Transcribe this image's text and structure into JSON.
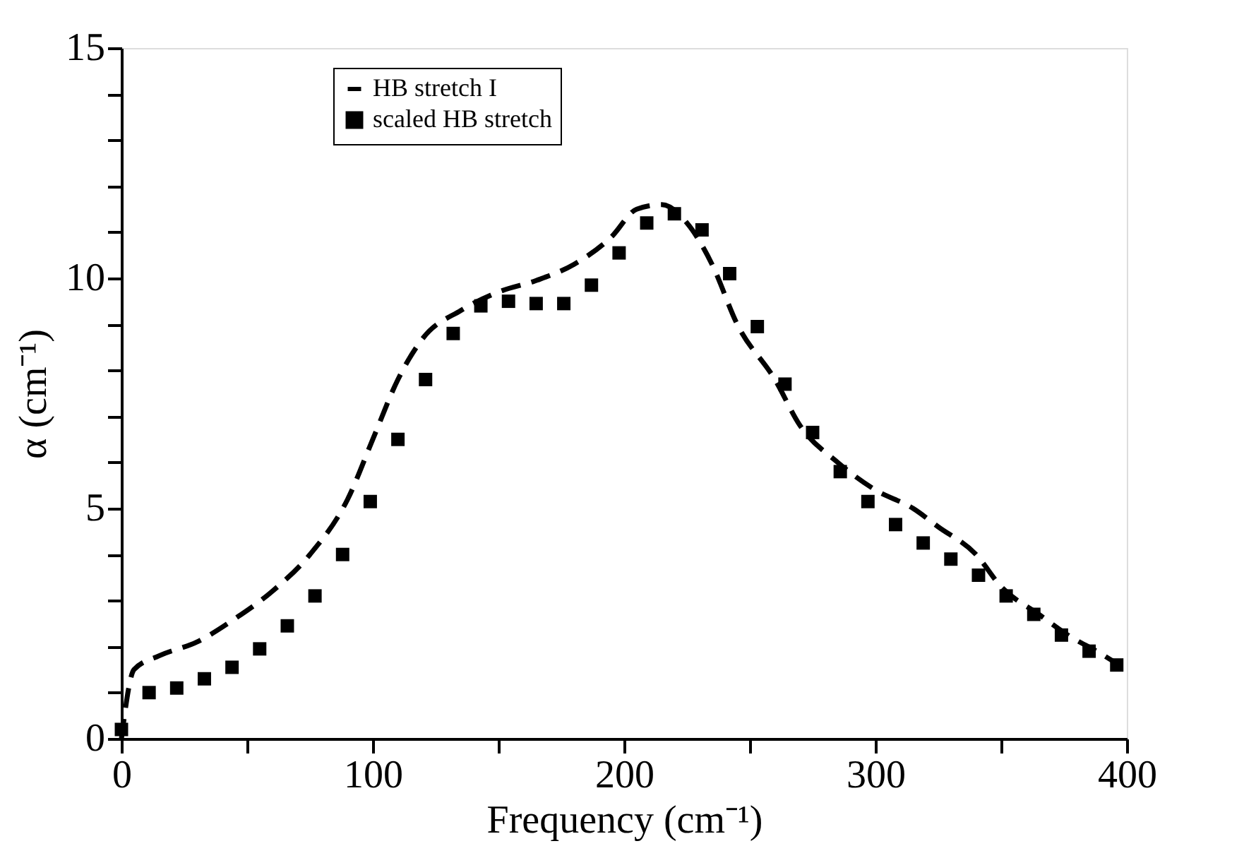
{
  "chart_data": {
    "type": "line",
    "xlabel": "Frequency (cm⁻¹)",
    "ylabel": "α (cm⁻¹)",
    "xlim": [
      0,
      400
    ],
    "ylim": [
      0,
      15
    ],
    "xticks": [
      0,
      {
        "value": 50,
        "label": null
      },
      100,
      {
        "value": 150,
        "label": null
      },
      200,
      {
        "value": 250,
        "label": null
      },
      300,
      {
        "value": 350,
        "label": null
      },
      400
    ],
    "yticks": [
      0,
      {
        "value": 1,
        "label": null
      },
      {
        "value": 2,
        "label": null
      },
      {
        "value": 3,
        "label": null
      },
      {
        "value": 4,
        "label": null
      },
      5,
      {
        "value": 6,
        "label": null
      },
      {
        "value": 7,
        "label": null
      },
      {
        "value": 8,
        "label": null
      },
      {
        "value": 9,
        "label": null
      },
      10,
      {
        "value": 11,
        "label": null
      },
      {
        "value": 12,
        "label": null
      },
      {
        "value": 13,
        "label": null
      },
      {
        "value": 14,
        "label": null
      },
      15
    ],
    "grid": false,
    "legend": "top left",
    "series": [
      {
        "name": "HB stretch I",
        "type": "line",
        "line_style": "dashed",
        "marker": "none",
        "color": "#000000",
        "x": [
          0,
          5,
          15,
          30,
          45,
          60,
          75,
          90,
          100,
          110,
          120,
          135,
          150,
          165,
          180,
          195,
          205,
          215,
          225,
          235,
          245,
          260,
          270,
          285,
          300,
          315,
          325,
          340,
          350,
          365,
          378,
          388,
          397
        ],
        "values": [
          0,
          1.5,
          1.8,
          2.1,
          2.6,
          3.2,
          4.0,
          5.2,
          6.5,
          7.8,
          8.7,
          9.3,
          9.7,
          9.95,
          10.3,
          10.9,
          11.5,
          11.6,
          11.2,
          10.3,
          9.0,
          7.8,
          6.8,
          6.0,
          5.4,
          5.0,
          4.6,
          4.0,
          3.3,
          2.7,
          2.2,
          1.9,
          1.6
        ]
      },
      {
        "name": "scaled HB stretch",
        "type": "scatter",
        "marker": "square",
        "color": "#000000",
        "x": [
          0,
          11,
          22,
          33,
          44,
          55,
          66,
          77,
          88,
          99,
          110,
          121,
          132,
          143,
          154,
          165,
          176,
          187,
          198,
          209,
          220,
          231,
          242,
          253,
          264,
          275,
          286,
          297,
          308,
          319,
          330,
          341,
          352,
          363,
          374,
          385,
          396
        ],
        "values": [
          0.2,
          1.0,
          1.1,
          1.3,
          1.55,
          1.95,
          2.45,
          3.1,
          4.0,
          5.15,
          6.5,
          7.8,
          8.8,
          9.4,
          9.5,
          9.45,
          9.45,
          9.85,
          10.55,
          11.2,
          11.4,
          11.05,
          10.1,
          8.95,
          7.7,
          6.65,
          5.8,
          5.15,
          4.65,
          4.25,
          3.9,
          3.55,
          3.1,
          2.7,
          2.25,
          1.9,
          1.6
        ]
      }
    ]
  }
}
